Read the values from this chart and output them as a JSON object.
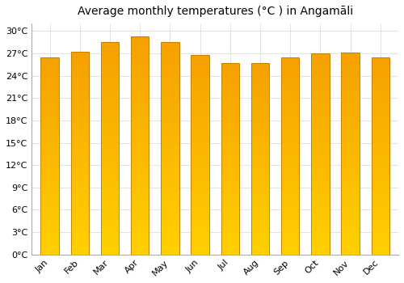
{
  "title": "Average monthly temperatures (°C ) in Angamāli",
  "months": [
    "Jan",
    "Feb",
    "Mar",
    "Apr",
    "May",
    "Jun",
    "Jul",
    "Aug",
    "Sep",
    "Oct",
    "Nov",
    "Dec"
  ],
  "values": [
    26.5,
    27.2,
    28.5,
    29.3,
    28.5,
    26.8,
    25.7,
    25.7,
    26.5,
    27.0,
    27.1,
    26.5
  ],
  "bar_color_bottom": "#FFD000",
  "bar_color_top": "#F5A000",
  "bar_edge_color": "#C88000",
  "ylim": [
    0,
    31
  ],
  "yticks": [
    0,
    3,
    6,
    9,
    12,
    15,
    18,
    21,
    24,
    27,
    30
  ],
  "ytick_labels": [
    "0°C",
    "3°C",
    "6°C",
    "9°C",
    "12°C",
    "15°C",
    "18°C",
    "21°C",
    "24°C",
    "27°C",
    "30°C"
  ],
  "background_color": "#FFFFFF",
  "grid_color": "#DDDDDD",
  "title_fontsize": 10,
  "tick_fontsize": 8,
  "bar_width": 0.6,
  "n_gradient": 100
}
